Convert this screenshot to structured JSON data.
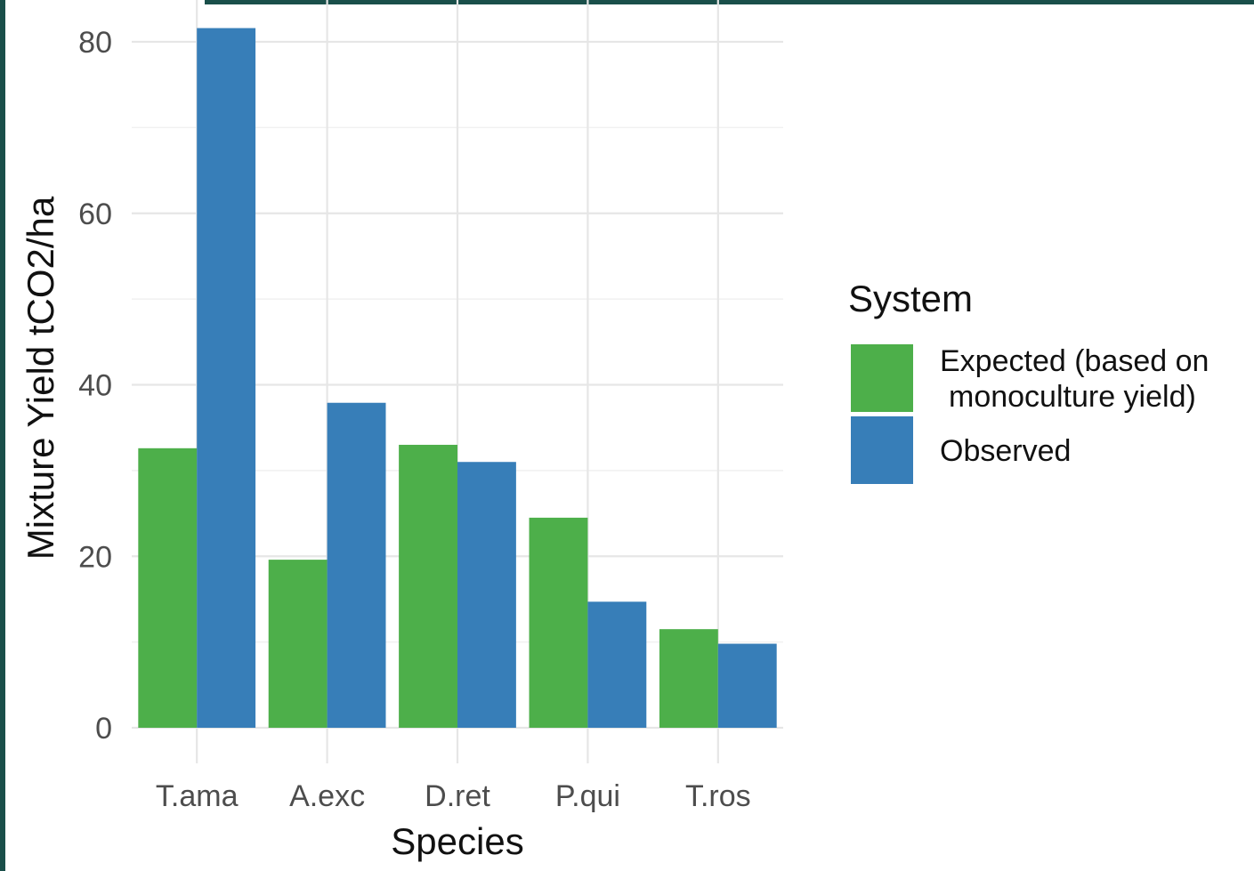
{
  "chart_data": {
    "type": "bar",
    "title": "",
    "xlabel": "Species",
    "ylabel": "Mixture Yield tCO2/ha",
    "categories": [
      "T.ama",
      "A.exc",
      "D.ret",
      "P.qui",
      "T.ros"
    ],
    "series": [
      {
        "name": "Expected (based on monoculture yield)",
        "legend_lines": [
          "Expected (based on",
          "monoculture yield)"
        ],
        "color": "#4daf4a",
        "values": [
          32.6,
          19.6,
          33.0,
          24.5,
          11.5
        ]
      },
      {
        "name": "Observed",
        "legend_lines": [
          "Observed"
        ],
        "color": "#377eb8",
        "values": [
          81.6,
          37.9,
          31.0,
          14.7,
          9.8
        ]
      }
    ],
    "ylim": [
      0,
      82.5
    ],
    "yticks": [
      0,
      20,
      40,
      60,
      80
    ],
    "grid": true,
    "legend": {
      "title": "System",
      "position": "right"
    }
  },
  "theme": {
    "frame_color": "#1a4f4a"
  }
}
